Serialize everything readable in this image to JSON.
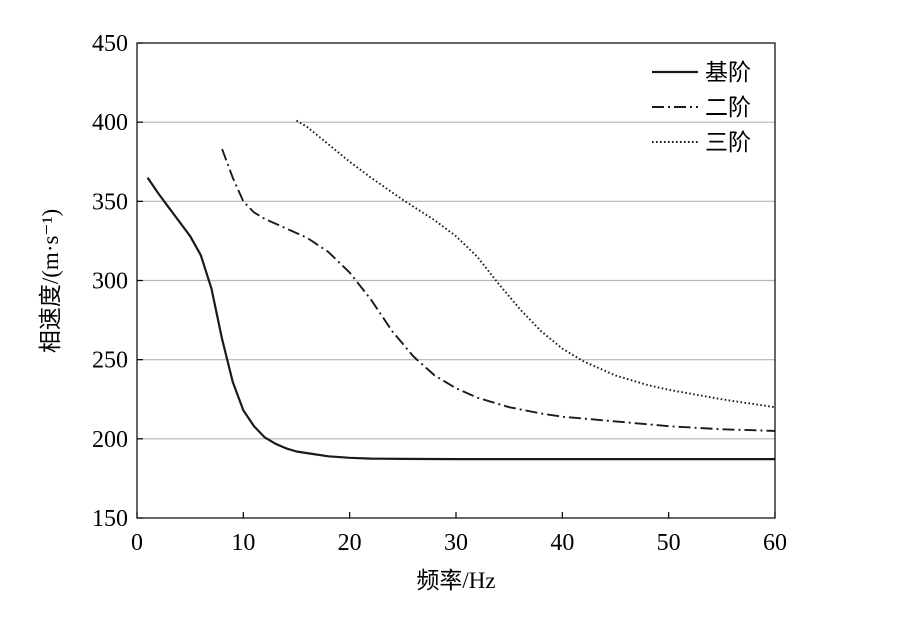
{
  "chart_data": {
    "type": "line",
    "xlabel": "频率/Hz",
    "ylabel": "相速度/(m·s⁻¹)",
    "xlim": [
      0,
      60
    ],
    "ylim": [
      150,
      450
    ],
    "xticks": [
      0,
      10,
      20,
      30,
      40,
      50,
      60
    ],
    "yticks": [
      150,
      200,
      250,
      300,
      350,
      400,
      450
    ],
    "grid": "horizontal",
    "legend_position": "top-right",
    "series": [
      {
        "name": "基阶",
        "style": "solid",
        "x": [
          1,
          2,
          3,
          4,
          5,
          6,
          7,
          8,
          9,
          10,
          11,
          12,
          13,
          14,
          15,
          16,
          18,
          20,
          22,
          25,
          30,
          35,
          40,
          50,
          60
        ],
        "y": [
          365,
          355,
          346,
          337,
          328,
          316,
          295,
          263,
          236,
          218,
          208,
          201,
          197,
          194,
          192,
          191,
          189,
          188,
          187.5,
          187.3,
          187.2,
          187.2,
          187.2,
          187.2,
          187.2
        ]
      },
      {
        "name": "二阶",
        "style": "dashdot",
        "x": [
          8,
          9,
          10,
          11,
          12,
          14,
          16,
          18,
          20,
          22,
          24,
          26,
          28,
          30,
          32,
          35,
          38,
          40,
          45,
          50,
          55,
          60
        ],
        "y": [
          383,
          365,
          350,
          343,
          339,
          333,
          327,
          318,
          305,
          288,
          268,
          252,
          240,
          232,
          226,
          220,
          216,
          214,
          211,
          208,
          206,
          205
        ]
      },
      {
        "name": "三阶",
        "style": "dotted",
        "x": [
          15,
          16,
          18,
          20,
          22,
          25,
          28,
          30,
          32,
          34,
          36,
          38,
          40,
          42,
          45,
          48,
          50,
          55,
          60
        ],
        "y": [
          401,
          397,
          386,
          375,
          365,
          351,
          338,
          328,
          315,
          298,
          282,
          268,
          257,
          249,
          240,
          234,
          231,
          225,
          220
        ]
      }
    ]
  }
}
